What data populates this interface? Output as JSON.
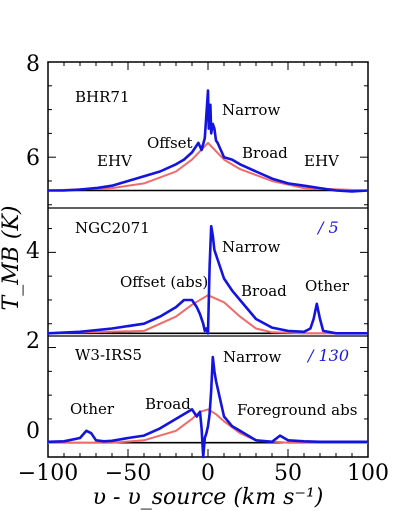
{
  "chart_data": {
    "type": "line",
    "xlabel": "υ - υ_source (km s⁻¹)",
    "ylabel": "T_MB (K)",
    "xlim": [
      -100,
      100
    ],
    "ylim": [
      -0.3,
      8
    ],
    "x_ticks": [
      "−100",
      "−50",
      "0",
      "50",
      "100"
    ],
    "y_ticks": [
      "0",
      "2",
      "4",
      "6",
      "8"
    ],
    "colors": {
      "spectrum": "#1414e0",
      "fit": "#f06a6a",
      "baseline": "#000000",
      "scale": "#1a1adf"
    },
    "panels": [
      {
        "name": "BHR71",
        "scale": "",
        "baseline": 5.3,
        "spectrum": {
          "x": [
            -100,
            -90,
            -80,
            -70,
            -60,
            -50,
            -40,
            -30,
            -20,
            -15,
            -10,
            -6,
            -4,
            -2,
            -1,
            0,
            0.5,
            1,
            1.5,
            2,
            3,
            4,
            5,
            6,
            8,
            10,
            15,
            20,
            30,
            40,
            50,
            60,
            70,
            80,
            90,
            100
          ],
          "y": [
            5.3,
            5.3,
            5.32,
            5.35,
            5.4,
            5.5,
            5.6,
            5.7,
            5.85,
            5.95,
            6.1,
            6.3,
            6.15,
            6.4,
            6.9,
            7.4,
            6.6,
            6.7,
            7.1,
            6.5,
            6.7,
            6.6,
            6.35,
            6.3,
            6.15,
            6.0,
            5.95,
            5.85,
            5.7,
            5.55,
            5.45,
            5.4,
            5.35,
            5.3,
            5.28,
            5.3
          ]
        },
        "fit": {
          "x": [
            -100,
            -60,
            -40,
            -20,
            -10,
            0,
            10,
            20,
            40,
            60,
            100
          ],
          "y": [
            5.3,
            5.35,
            5.45,
            5.7,
            5.95,
            6.3,
            5.95,
            5.75,
            5.5,
            5.35,
            5.3
          ]
        },
        "labels": [
          "EHV",
          "Offset",
          "Narrow",
          "Broad",
          "EHV"
        ]
      },
      {
        "name": "NGC2071",
        "scale": "/ 5",
        "baseline": 2.3,
        "spectrum": {
          "x": [
            -100,
            -80,
            -60,
            -40,
            -30,
            -20,
            -15,
            -10,
            -7,
            -5,
            -3,
            -2,
            -1,
            0,
            1,
            2,
            3,
            4,
            6,
            8,
            10,
            15,
            20,
            25,
            30,
            40,
            50,
            60,
            64,
            66,
            68,
            70,
            72,
            80,
            90,
            100
          ],
          "y": [
            2.3,
            2.33,
            2.4,
            2.5,
            2.65,
            2.85,
            3.0,
            3.0,
            2.85,
            2.7,
            2.5,
            2.35,
            2.4,
            2.3,
            3.7,
            4.55,
            4.35,
            4.05,
            3.85,
            3.65,
            3.45,
            3.2,
            3.0,
            2.8,
            2.6,
            2.42,
            2.35,
            2.33,
            2.4,
            2.6,
            2.92,
            2.6,
            2.35,
            2.3,
            2.3,
            2.3
          ]
        },
        "fit": {
          "x": [
            -100,
            -40,
            -20,
            -10,
            0,
            10,
            20,
            30,
            40,
            60,
            100
          ],
          "y": [
            2.3,
            2.35,
            2.65,
            2.9,
            3.1,
            2.95,
            2.65,
            2.4,
            2.32,
            2.3,
            2.3
          ]
        },
        "labels": [
          "Offset (abs)",
          "Narrow",
          "Broad",
          "Other"
        ]
      },
      {
        "name": "W3-IRS5",
        "scale": "/ 130",
        "baseline": 0.0,
        "spectrum": {
          "x": [
            -100,
            -90,
            -80,
            -76,
            -73,
            -70,
            -65,
            -60,
            -50,
            -40,
            -30,
            -20,
            -10,
            -7,
            -5,
            -4,
            -3,
            -2,
            -1,
            0,
            1,
            2,
            3,
            4,
            5,
            7,
            10,
            15,
            20,
            30,
            40,
            45,
            50,
            60,
            70,
            80,
            90,
            100
          ],
          "y": [
            0.02,
            0.03,
            0.1,
            0.25,
            0.2,
            0.05,
            0.03,
            0.04,
            0.1,
            0.15,
            0.3,
            0.5,
            0.7,
            0.55,
            0.65,
            0.3,
            -0.3,
            0.1,
            0.2,
            0.35,
            0.6,
            1.1,
            1.8,
            1.5,
            1.3,
            1.0,
            0.55,
            0.35,
            0.25,
            0.05,
            0.02,
            0.15,
            0.05,
            0.03,
            0.02,
            0.02,
            0.02,
            0.02
          ]
        },
        "fit": {
          "x": [
            -100,
            -60,
            -40,
            -20,
            -10,
            -5,
            0,
            5,
            10,
            20,
            30,
            50,
            100
          ],
          "y": [
            0,
            0,
            0.05,
            0.25,
            0.5,
            0.65,
            0.7,
            0.6,
            0.45,
            0.2,
            0.05,
            0,
            0
          ]
        },
        "labels": [
          "Other",
          "Broad",
          "Narrow",
          "Foreground abs"
        ]
      }
    ]
  }
}
